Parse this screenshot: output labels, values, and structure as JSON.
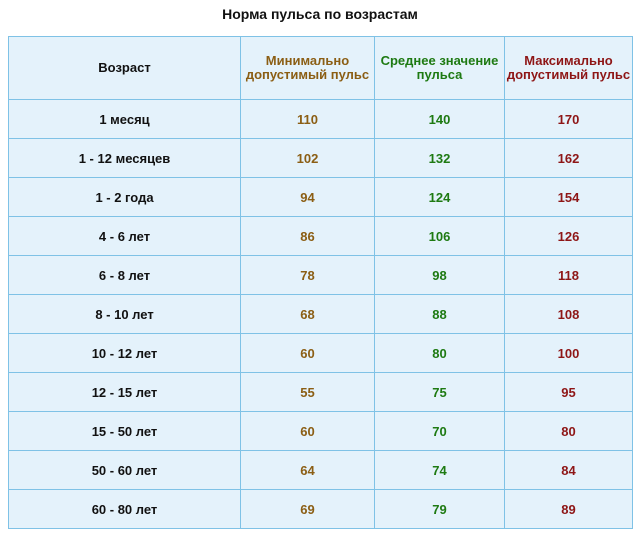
{
  "title": "Норма пульса по возрастам",
  "table": {
    "headers": {
      "age": "Возраст",
      "min": "Минимально допустимый пульс",
      "avg": "Среднее значение пульса",
      "max": "Максимально допустимый пульс"
    },
    "rows": [
      {
        "age": "1 месяц",
        "min": "110",
        "avg": "140",
        "max": "170"
      },
      {
        "age": "1 - 12 месяцев",
        "min": "102",
        "avg": "132",
        "max": "162"
      },
      {
        "age": "1 - 2 года",
        "min": "94",
        "avg": "124",
        "max": "154"
      },
      {
        "age": "4 - 6 лет",
        "min": "86",
        "avg": "106",
        "max": "126"
      },
      {
        "age": "6 - 8 лет",
        "min": "78",
        "avg": "98",
        "max": "118"
      },
      {
        "age": "8 - 10 лет",
        "min": "68",
        "avg": "88",
        "max": "108"
      },
      {
        "age": "10 - 12 лет",
        "min": "60",
        "avg": "80",
        "max": "100"
      },
      {
        "age": "12 - 15 лет",
        "min": "55",
        "avg": "75",
        "max": "95"
      },
      {
        "age": "15 - 50 лет",
        "min": "60",
        "avg": "70",
        "max": "80"
      },
      {
        "age": "50 - 60 лет",
        "min": "64",
        "avg": "74",
        "max": "84"
      },
      {
        "age": "60 - 80 лет",
        "min": "69",
        "avg": "79",
        "max": "89"
      }
    ]
  },
  "colors": {
    "min": "#8b5e14",
    "avg": "#1e7a12",
    "max": "#8e1616",
    "cell_bg": "#e4f2fb",
    "border": "#7fc2e6"
  }
}
